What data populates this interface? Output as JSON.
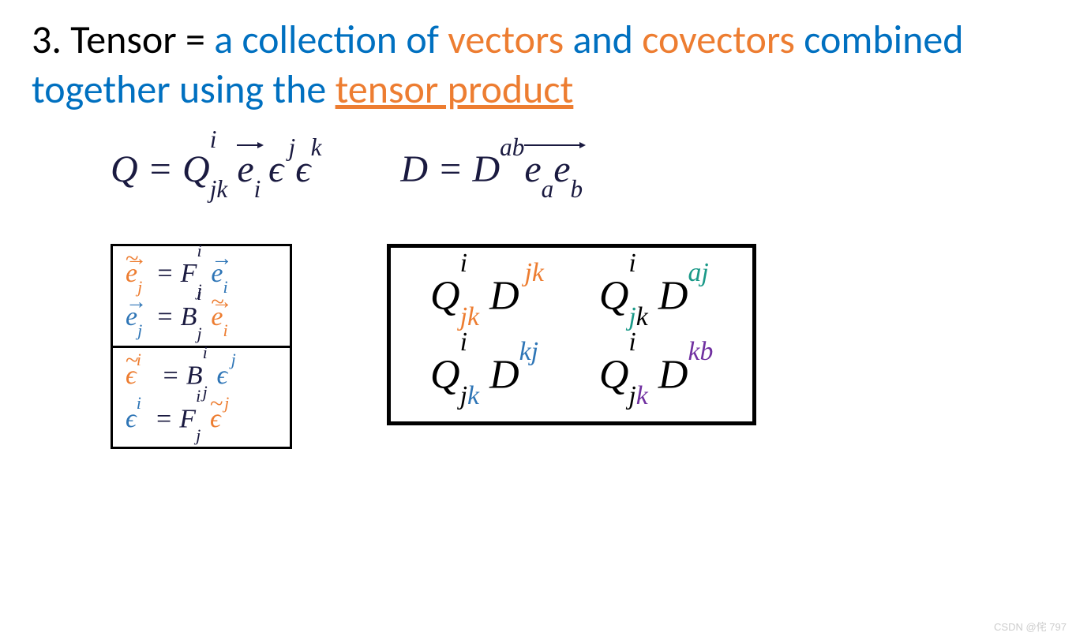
{
  "title": {
    "prefix": "3. Tensor = ",
    "blue1": "a collection of ",
    "orange1": "vectors ",
    "blue2": "and ",
    "orange2": "covectors ",
    "blue3": "combined together using the ",
    "orange3_underlined": "tensor product"
  },
  "colors": {
    "black": "#000000",
    "blue": "#0070c0",
    "orange": "#ed7d31",
    "navy": "#1a1a40",
    "index_blue": "#2e75b6",
    "teal": "#1a9988",
    "purple": "#7030a0",
    "grid": "#cccccc",
    "background": "#ffffff"
  },
  "typography": {
    "title_fontsize": 50,
    "equation_fontsize": 48,
    "small_box_fontsize": 34,
    "big_box_fontsize": 52
  },
  "equations": {
    "eq_Q": {
      "symbol": "Q",
      "components": "Q^i_{jk}",
      "basis": "e_i ε^j ε^k",
      "description": "Q = Q^i_jk e_i ε^j ε^k"
    },
    "eq_D": {
      "symbol": "D",
      "components": "D^{ab}",
      "basis": "e_a e_b",
      "description": "D = D^ab e_a e_b"
    }
  },
  "transformation_rules": {
    "basis_vectors": {
      "forward": "ẽ_j = F^i_j e_i",
      "backward": "e_j = B^i_j ẽ_i"
    },
    "dual_basis": {
      "backward": "ε̃^i = B^i_j ε^j",
      "forward": "ε^i = F^i_j ε̃^j"
    }
  },
  "contractions": {
    "items": [
      {
        "left": "Q^i_{jk}",
        "right": "D^{jk}",
        "right_color_j": "#ed7d31",
        "right_color_k": "#ed7d31"
      },
      {
        "left": "Q^i_{jk}",
        "right": "D^{aj}",
        "right_color_a": "#1a9988",
        "right_color_j": "#1a9988"
      },
      {
        "left": "Q^i_{jk}",
        "right": "D^{kj}",
        "right_color_k": "#2e75b6",
        "right_color_j": "#2e75b6"
      },
      {
        "left": "Q^i_{jk}",
        "right": "D^{kb}",
        "right_color_k": "#7030a0",
        "right_color_b": "#7030a0"
      }
    ]
  },
  "watermark": "CSDN @侘 797"
}
